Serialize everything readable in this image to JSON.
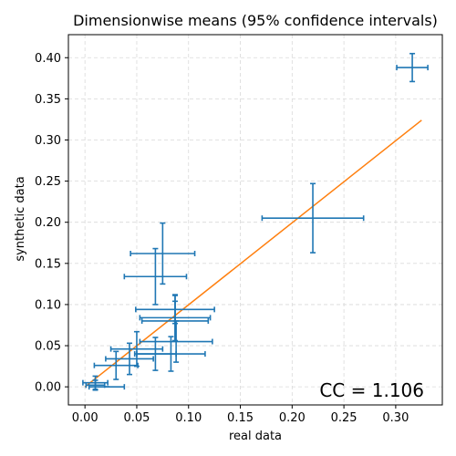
{
  "chart_data": {
    "type": "scatter",
    "title": "Dimensionwise means (95% confidence intervals)",
    "xlabel": "real data",
    "ylabel": "synthetic data",
    "xlim": [
      -0.016,
      0.345
    ],
    "ylim": [
      -0.022,
      0.428
    ],
    "xticks": [
      0.0,
      0.05,
      0.1,
      0.15,
      0.2,
      0.25,
      0.3
    ],
    "xtick_labels": [
      "0.00",
      "0.05",
      "0.10",
      "0.15",
      "0.20",
      "0.25",
      "0.30"
    ],
    "yticks": [
      0.0,
      0.05,
      0.1,
      0.15,
      0.2,
      0.25,
      0.3,
      0.35,
      0.4
    ],
    "ytick_labels": [
      "0.00",
      "0.05",
      "0.10",
      "0.15",
      "0.20",
      "0.25",
      "0.30",
      "0.35",
      "0.40"
    ],
    "grid": true,
    "annotation": "CC = 1.106",
    "colors": {
      "points": "#1f77b4",
      "line": "#ff7f0e",
      "grid": "#d9d9d9"
    },
    "fit_line": {
      "x": [
        0.0,
        0.325
      ],
      "y": [
        0.0,
        0.324
      ]
    },
    "points": [
      {
        "x": 0.316,
        "y": 0.388,
        "xerr": 0.015,
        "yerr": 0.017
      },
      {
        "x": 0.22,
        "y": 0.205,
        "xerr": 0.049,
        "yerr": 0.042
      },
      {
        "x": 0.075,
        "y": 0.162,
        "xerr": 0.031,
        "yerr": 0.037
      },
      {
        "x": 0.068,
        "y": 0.134,
        "xerr": 0.03,
        "yerr": 0.034
      },
      {
        "x": 0.087,
        "y": 0.094,
        "xerr": 0.038,
        "yerr": 0.017
      },
      {
        "x": 0.087,
        "y": 0.084,
        "xerr": 0.034,
        "yerr": 0.028
      },
      {
        "x": 0.087,
        "y": 0.08,
        "xerr": 0.032,
        "yerr": 0.024
      },
      {
        "x": 0.088,
        "y": 0.055,
        "xerr": 0.035,
        "yerr": 0.025
      },
      {
        "x": 0.05,
        "y": 0.046,
        "xerr": 0.025,
        "yerr": 0.021
      },
      {
        "x": 0.083,
        "y": 0.04,
        "xerr": 0.033,
        "yerr": 0.021
      },
      {
        "x": 0.068,
        "y": 0.04,
        "xerr": 0.02,
        "yerr": 0.02
      },
      {
        "x": 0.043,
        "y": 0.034,
        "xerr": 0.023,
        "yerr": 0.019
      },
      {
        "x": 0.03,
        "y": 0.026,
        "xerr": 0.021,
        "yerr": 0.017
      },
      {
        "x": 0.021,
        "y": 0.0,
        "xerr": 0.017,
        "yerr": 0.0
      },
      {
        "x": 0.01,
        "y": 0.005,
        "xerr": 0.012,
        "yerr": 0.008
      },
      {
        "x": 0.01,
        "y": 0.002,
        "xerr": 0.009,
        "yerr": 0.006
      }
    ]
  }
}
